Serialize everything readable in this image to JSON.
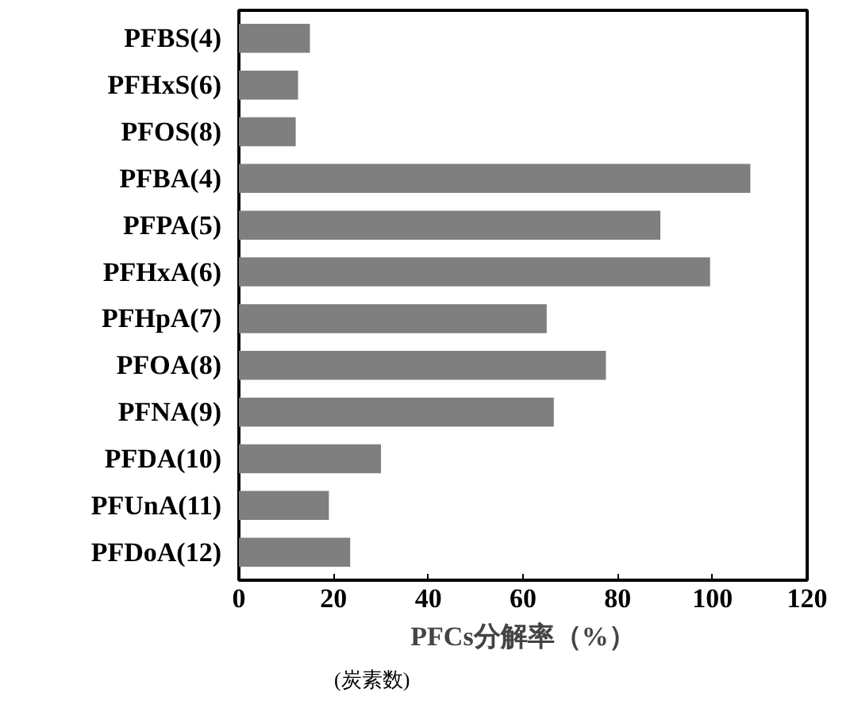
{
  "chart_data": {
    "type": "bar",
    "orientation": "horizontal",
    "xlabel": "PFCs分解率（%）",
    "categories": [
      "PFBS(4)",
      "PFHxS(6)",
      "PFOS(8)",
      "PFBA(4)",
      "PFPA(5)",
      "PFHxA(6)",
      "PFHpA(7)",
      "PFOA(8)",
      "PFNA(9)",
      "PFDA(10)",
      "PFUnA(11)",
      "PFDoA(12)"
    ],
    "values": [
      15,
      12.5,
      12,
      108,
      89,
      99.5,
      65,
      77.5,
      66.5,
      30,
      19,
      23.5
    ],
    "color": "#7f7f7f",
    "xlim": [
      0,
      120
    ],
    "xticks": [
      0,
      20,
      40,
      60,
      80,
      100,
      120
    ],
    "grid": false,
    "annotations": [
      "(炭素数)"
    ]
  }
}
